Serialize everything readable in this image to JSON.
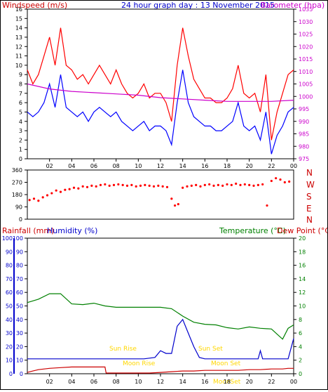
{
  "header": {
    "left_label": "Windspeed (m/s)",
    "title": "24 hour graph day : 13 November 2015",
    "right_label": "Barometer (hpa)"
  },
  "panel2_labels": {
    "compass": [
      "N",
      "W",
      "S",
      "E",
      "N"
    ]
  },
  "panel3_header": {
    "rain_label": "Rainfall (mm)",
    "humidity_label": "Humidity (%)",
    "temp_label": "Temperature (°C)",
    "dew_label": "Dew Point (°C)"
  },
  "annotations": {
    "sun_rise": "Sun Rise",
    "sun_set": "Sun Set",
    "moon_rise": "Moon Rise",
    "moon_set": "Moon Set",
    "moon_bottom": "MoonSet"
  },
  "colors": {
    "wind_gust": "#ff0000",
    "wind_avg": "#0000ff",
    "barometer": "#cc00cc",
    "direction": "#ff0000",
    "temperature": "#008000",
    "humidity": "#0000cc",
    "rain": "#cc0000",
    "annotation": "#ffd700",
    "label_red": "#cc0000",
    "label_blue": "#0000cc",
    "label_green": "#008000",
    "label_magenta": "#cc00cc"
  },
  "chart_data": [
    {
      "type": "line",
      "x_ticks": [
        "02",
        "04",
        "06",
        "08",
        "10",
        "12",
        "14",
        "16",
        "18",
        "20",
        "22",
        "00"
      ],
      "xlim": [
        0,
        24
      ],
      "y_left_ticks": [
        0,
        1,
        2,
        3,
        4,
        5,
        6,
        7,
        8,
        9,
        10,
        11,
        12,
        13,
        14,
        15,
        16
      ],
      "ylim_left": [
        0,
        16
      ],
      "y_right_ticks": [
        975,
        980,
        985,
        990,
        995,
        1000,
        1005,
        1010,
        1015,
        1020,
        1025,
        1030,
        1035
      ],
      "ylim_right": [
        975,
        1035
      ],
      "series": [
        {
          "key": "gust",
          "axis": "left",
          "x": [
            0,
            0.5,
            1,
            1.5,
            2,
            2.5,
            3,
            3.5,
            4,
            4.5,
            5,
            5.5,
            6,
            6.5,
            7,
            7.5,
            8,
            8.5,
            9,
            9.5,
            10,
            10.5,
            11,
            11.5,
            12,
            12.5,
            13,
            13.5,
            14,
            14.5,
            15,
            15.5,
            16,
            16.5,
            17,
            17.5,
            18,
            18.5,
            19,
            19.5,
            20,
            20.5,
            21,
            21.5,
            22,
            22.5,
            23,
            23.5,
            24
          ],
          "y": [
            9.5,
            8,
            9,
            11,
            13,
            10,
            14,
            10,
            9.5,
            8.5,
            9,
            8,
            9,
            10,
            9,
            8,
            9.5,
            8,
            7,
            6.5,
            7,
            8,
            6.5,
            7,
            7,
            6,
            4,
            10,
            14,
            11,
            8.5,
            7.5,
            6.5,
            6.5,
            6,
            6,
            6.5,
            7.5,
            10,
            7,
            6.5,
            7,
            5,
            9,
            2,
            5,
            7,
            9,
            9.5
          ]
        },
        {
          "key": "avg",
          "axis": "left",
          "x": [
            0,
            0.5,
            1,
            1.5,
            2,
            2.5,
            3,
            3.5,
            4,
            4.5,
            5,
            5.5,
            6,
            6.5,
            7,
            7.5,
            8,
            8.5,
            9,
            9.5,
            10,
            10.5,
            11,
            11.5,
            12,
            12.5,
            13,
            13.5,
            14,
            14.5,
            15,
            15.5,
            16,
            16.5,
            17,
            17.5,
            18,
            18.5,
            19,
            19.5,
            20,
            20.5,
            21,
            21.5,
            22,
            22.5,
            23,
            23.5,
            24
          ],
          "y": [
            5,
            4.5,
            5,
            6,
            8,
            5.5,
            9,
            5.5,
            5,
            4.5,
            5,
            4,
            5,
            5.5,
            5,
            4.5,
            5,
            4,
            3.5,
            3,
            3.5,
            4,
            3,
            3.5,
            3.5,
            3,
            1.5,
            6,
            9.5,
            6,
            4.5,
            4,
            3.5,
            3.5,
            3,
            3,
            3.5,
            4,
            6,
            3.5,
            3,
            3.5,
            2,
            5,
            0.5,
            2.5,
            3.5,
            5,
            5.5
          ]
        },
        {
          "key": "baro",
          "axis": "right",
          "x": [
            0,
            2,
            4,
            6,
            8,
            10,
            12,
            14,
            16,
            18,
            20,
            22,
            24
          ],
          "y": [
            1005,
            1003,
            1002,
            1001.5,
            1001,
            1000.5,
            999.5,
            999,
            998.5,
            998,
            998,
            998,
            998.5
          ]
        }
      ]
    },
    {
      "type": "scatter",
      "x_ticks": [
        "02",
        "04",
        "06",
        "08",
        "10",
        "12",
        "14",
        "16",
        "18",
        "20",
        "22",
        "00"
      ],
      "xlim": [
        0,
        24
      ],
      "y_ticks": [
        0,
        90,
        180,
        270,
        360
      ],
      "ylim": [
        0,
        360
      ],
      "points_x": [
        0.2,
        0.6,
        1,
        1.4,
        1.8,
        2.2,
        2.6,
        3,
        3.4,
        3.8,
        4.2,
        4.6,
        5,
        5.4,
        5.8,
        6.2,
        6.6,
        7,
        7.4,
        7.8,
        8.2,
        8.6,
        9,
        9.4,
        9.8,
        10.2,
        10.6,
        11,
        11.4,
        11.8,
        12.2,
        12.6,
        13,
        13.3,
        13.6,
        14,
        14.4,
        14.8,
        15.2,
        15.6,
        16,
        16.4,
        16.8,
        17.2,
        17.6,
        18,
        18.4,
        18.8,
        19.2,
        19.6,
        20,
        20.4,
        20.8,
        21.2,
        21.6,
        22,
        22.4,
        22.8,
        23.2,
        23.6
      ],
      "points_y": [
        140,
        150,
        135,
        160,
        175,
        190,
        210,
        200,
        215,
        220,
        230,
        225,
        240,
        235,
        245,
        240,
        250,
        255,
        245,
        250,
        255,
        250,
        245,
        250,
        240,
        245,
        250,
        245,
        240,
        245,
        240,
        235,
        150,
        100,
        110,
        230,
        240,
        245,
        250,
        240,
        250,
        255,
        245,
        250,
        245,
        255,
        250,
        260,
        250,
        255,
        250,
        245,
        250,
        255,
        100,
        280,
        300,
        290,
        270,
        275
      ]
    },
    {
      "type": "line",
      "x_ticks": [
        "02",
        "04",
        "06",
        "08",
        "10",
        "12",
        "14",
        "16",
        "18",
        "20",
        "22",
        "00"
      ],
      "xlim": [
        0,
        24
      ],
      "y_left_ticks": [
        0,
        10,
        20,
        30,
        40,
        50,
        60,
        70,
        80,
        90,
        100
      ],
      "ylim_left": [
        0,
        100
      ],
      "y_right_ticks": [
        0,
        2,
        4,
        6,
        8,
        10,
        12,
        14,
        16,
        18,
        20
      ],
      "ylim_right": [
        0,
        20
      ],
      "series": [
        {
          "key": "temp",
          "axis": "right",
          "x": [
            0,
            1,
            2,
            3,
            4,
            5,
            6,
            7,
            8,
            9,
            10,
            11,
            12,
            13,
            14,
            15,
            16,
            17,
            18,
            19,
            20,
            21,
            22,
            23,
            23.5,
            24
          ],
          "y": [
            10.5,
            11,
            11.8,
            11.8,
            10.3,
            10.2,
            10.4,
            10,
            9.8,
            9.8,
            9.8,
            9.8,
            9.8,
            9.6,
            8.5,
            7.6,
            7.3,
            7.2,
            6.8,
            6.6,
            6.9,
            6.7,
            6.6,
            5.1,
            6.7,
            7.2
          ]
        },
        {
          "key": "humidity",
          "axis": "left",
          "x": [
            0,
            9,
            10.5,
            11.5,
            12,
            12.5,
            13,
            13.5,
            14,
            14.5,
            15,
            15.5,
            16,
            17,
            18,
            19,
            20,
            20.8,
            21,
            21.2,
            22,
            23,
            23.5,
            24
          ],
          "y": [
            11,
            11,
            11,
            12,
            17,
            15,
            15,
            35,
            40,
            30,
            20,
            12,
            11,
            11,
            11,
            11,
            11,
            11,
            17,
            11,
            11,
            11,
            11,
            26
          ]
        },
        {
          "key": "rain",
          "axis": "left",
          "x": [
            0,
            0.5,
            1,
            2,
            3,
            4,
            6,
            7,
            7.1,
            8,
            10,
            11,
            12,
            13,
            14,
            15,
            16,
            17,
            18,
            19,
            20,
            21,
            22,
            23,
            23.5,
            24
          ],
          "y": [
            1,
            2,
            3,
            4,
            4.5,
            5,
            5,
            5,
            0.5,
            0.5,
            0.5,
            0.5,
            1,
            1.5,
            2,
            2,
            2.5,
            2.5,
            2.5,
            2.5,
            3,
            3,
            3.5,
            3.5,
            4,
            4
          ]
        }
      ]
    }
  ]
}
